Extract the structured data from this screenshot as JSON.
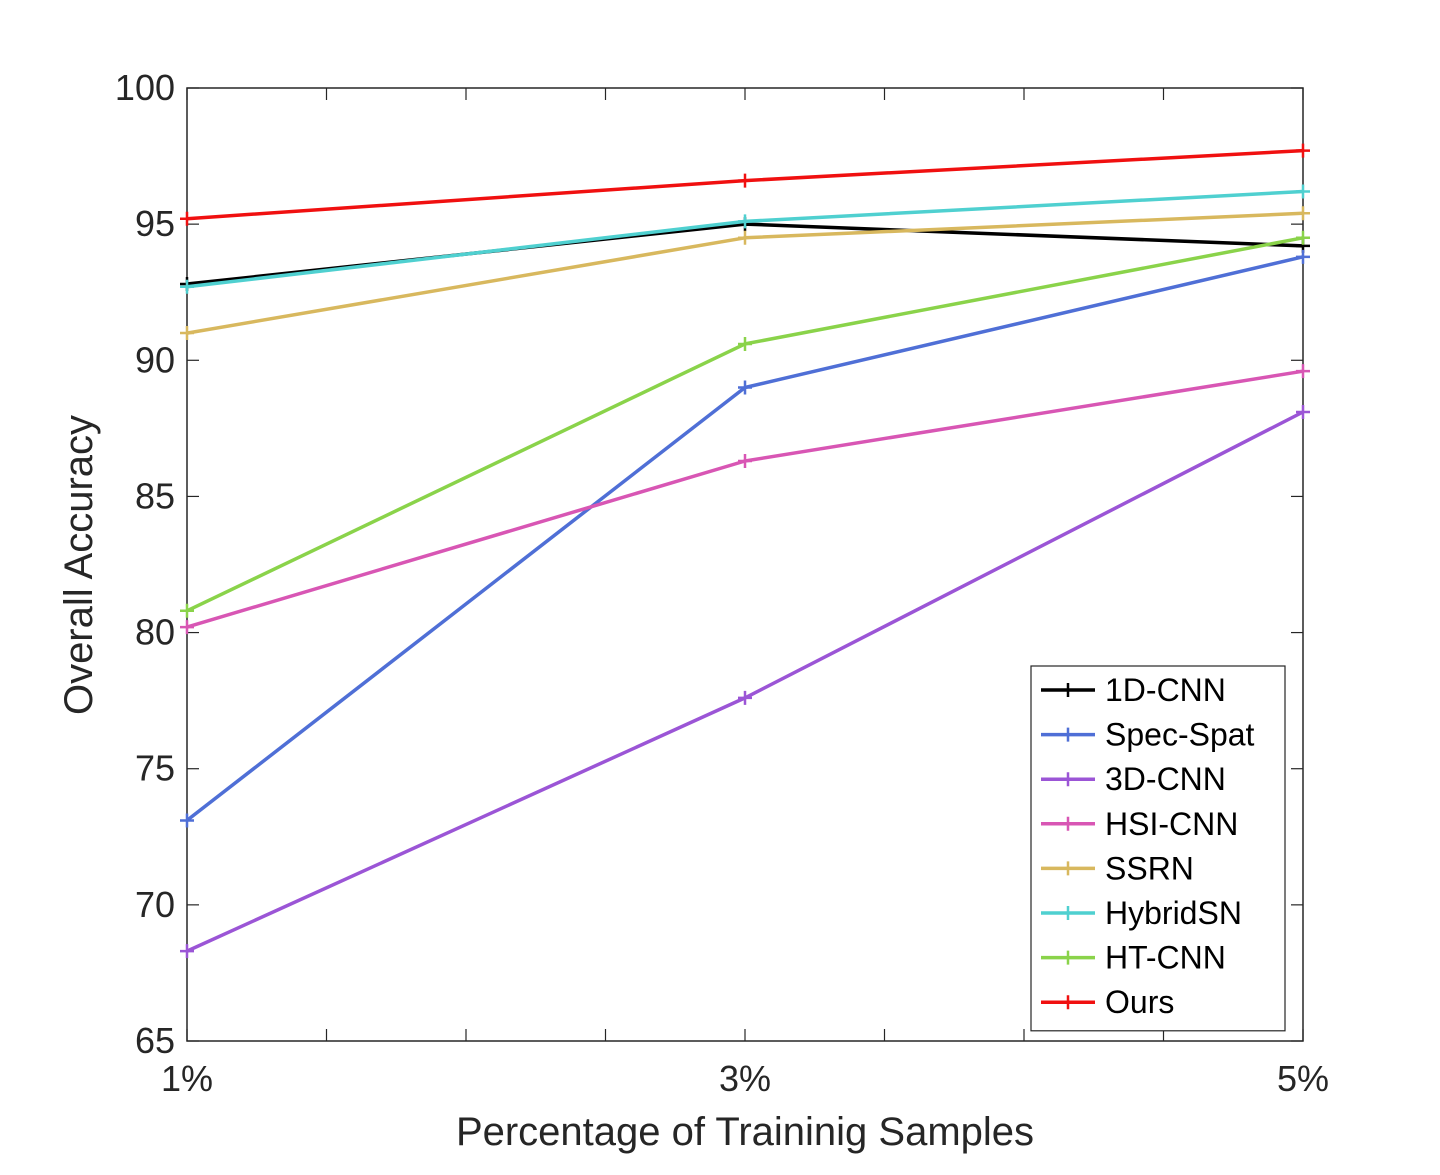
{
  "chart_data": {
    "type": "line",
    "title": "",
    "xlabel": "Percentage of Traininig Samples",
    "ylabel": "Overall Accuracy",
    "categories": [
      "1%",
      "3%",
      "5%"
    ],
    "x": [
      1,
      3,
      5
    ],
    "xlim": [
      1,
      5
    ],
    "ylim": [
      65,
      100
    ],
    "yticks": [
      65,
      70,
      75,
      80,
      85,
      90,
      95,
      100
    ],
    "grid": false,
    "legend_position": "bottom-right",
    "marker": "+",
    "series": [
      {
        "name": "1D-CNN",
        "color": "#000000",
        "values": [
          92.8,
          95.0,
          94.2
        ]
      },
      {
        "name": "Spec-Spat",
        "color": "#4f6fd6",
        "values": [
          73.1,
          89.0,
          93.8
        ]
      },
      {
        "name": "3D-CNN",
        "color": "#9b55d6",
        "values": [
          68.3,
          77.6,
          88.1
        ]
      },
      {
        "name": "HSI-CNN",
        "color": "#d856b4",
        "values": [
          80.2,
          86.3,
          89.6
        ]
      },
      {
        "name": "SSRN",
        "color": "#d8b85e",
        "values": [
          91.0,
          94.5,
          95.4
        ]
      },
      {
        "name": "HybridSN",
        "color": "#4fd0d0",
        "values": [
          92.7,
          95.1,
          96.2
        ]
      },
      {
        "name": "HT-CNN",
        "color": "#8ad34a",
        "values": [
          80.8,
          90.6,
          94.5
        ]
      },
      {
        "name": "Ours",
        "color": "#f01010",
        "values": [
          95.2,
          96.6,
          97.7
        ]
      }
    ]
  }
}
